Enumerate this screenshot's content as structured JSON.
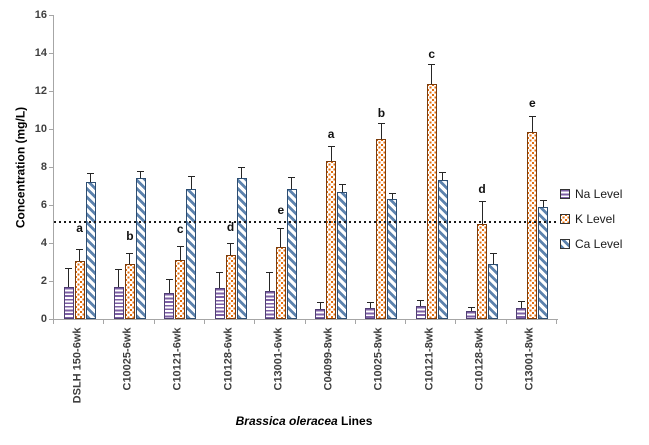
{
  "chart_data": {
    "type": "bar",
    "title": "",
    "ylabel": "Concentration (mg/L)",
    "xlabel": "Brassica oleracea Lines",
    "xlabel_italic": "Brassica oleracea",
    "xlabel_rest": " Lines",
    "ylim": [
      0,
      16
    ],
    "yticks": [
      0,
      2,
      4,
      6,
      8,
      10,
      12,
      14,
      16
    ],
    "grid": false,
    "legend_position": "right",
    "reference_line": {
      "y": 5.1,
      "style": "dotted",
      "color": "#1a1a1a"
    },
    "categories": [
      "DSLH 150-6wk",
      "C10025-6wk",
      "C10121-6wk",
      "C10128-6wk",
      "C13001-6wk",
      "C04099-8wk",
      "C10025-8wk",
      "C10121-8wk",
      "C10128-8wk",
      "C13001-8wk"
    ],
    "series": [
      {
        "name": "Na Level",
        "pattern": "horizontal-stripes",
        "color": "#7d5fa5",
        "border_color": "#503f73",
        "values": [
          1.7,
          1.7,
          1.35,
          1.65,
          1.45,
          0.55,
          0.6,
          0.7,
          0.4,
          0.6
        ],
        "errors": [
          1.0,
          0.95,
          0.75,
          0.85,
          1.0,
          0.35,
          0.3,
          0.3,
          0.25,
          0.35
        ]
      },
      {
        "name": "K Level",
        "pattern": "dots",
        "color": "#e36c09",
        "border_color": "#7a3c0d",
        "values": [
          3.05,
          2.9,
          3.1,
          3.35,
          3.8,
          8.3,
          9.45,
          12.35,
          5.0,
          9.85
        ],
        "errors": [
          0.65,
          0.6,
          0.75,
          0.65,
          1.0,
          0.8,
          0.85,
          1.05,
          1.2,
          0.85
        ]
      },
      {
        "name": "Ca Level",
        "pattern": "diagonal-stripes",
        "color": "#5d83ae",
        "border_color": "#2c4d71",
        "values": [
          7.2,
          7.4,
          6.85,
          7.4,
          6.85,
          6.7,
          6.3,
          7.3,
          2.9,
          5.9
        ],
        "errors": [
          0.5,
          0.4,
          0.7,
          0.6,
          0.65,
          0.4,
          0.35,
          0.45,
          0.6,
          0.35
        ]
      }
    ],
    "annotations": [
      {
        "label": "a",
        "group": 0,
        "series": "K Level",
        "y": 4.4
      },
      {
        "label": "b",
        "group": 1,
        "series": "K Level",
        "y": 4.0
      },
      {
        "label": "c",
        "group": 2,
        "series": "K Level",
        "y": 4.35
      },
      {
        "label": "d",
        "group": 3,
        "series": "K Level",
        "y": 4.45
      },
      {
        "label": "e",
        "group": 4,
        "series": "K Level",
        "y": 5.35
      },
      {
        "label": "a",
        "group": 5,
        "series": "K Level",
        "y": 9.35
      },
      {
        "label": "b",
        "group": 6,
        "series": "K Level",
        "y": 10.5
      },
      {
        "label": "c",
        "group": 7,
        "series": "K Level",
        "y": 13.6
      },
      {
        "label": "d",
        "group": 8,
        "series": "K Level",
        "y": 6.45
      },
      {
        "label": "e",
        "group": 9,
        "series": "K Level",
        "y": 11.0
      }
    ],
    "axis_color": "#a6a6a6",
    "tick_label_color": "#3f3f3f",
    "error_bar_color": "#262626"
  }
}
